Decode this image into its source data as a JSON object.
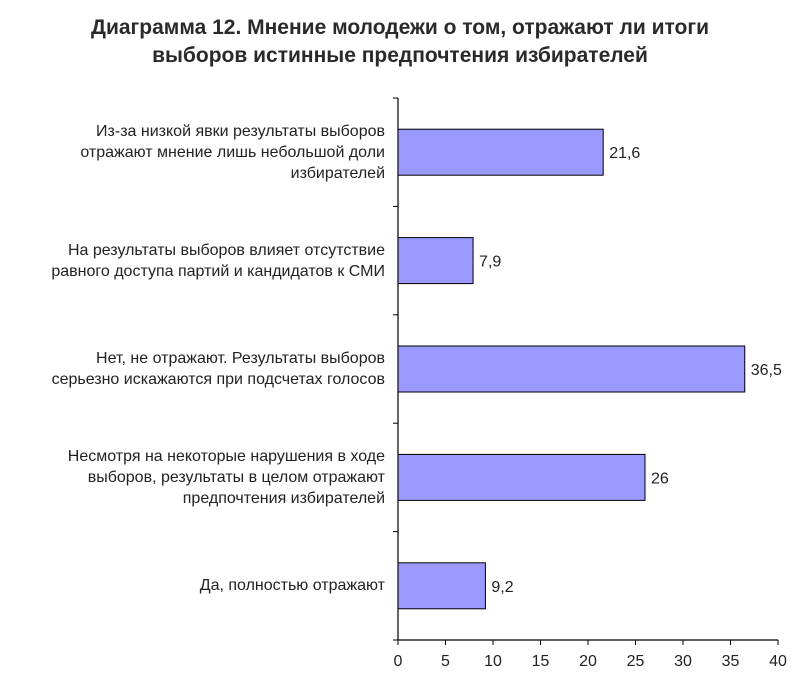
{
  "chart_data": {
    "type": "bar",
    "orientation": "horizontal",
    "title_lines": [
      "Диаграмма 12. Мнение молодежи о том, отражают ли итоги",
      "выборов истинные предпочтения избирателей"
    ],
    "categories": [
      [
        "Из-за низкой явки результаты выборов",
        "отражают мнение лишь небольшой доли",
        "избирателей"
      ],
      [
        "На результаты выборов влияет отсутствие",
        "равного доступа партий и кандидатов к СМИ"
      ],
      [
        "Нет, не отражают. Результаты выборов",
        "серьезно искажаются при подсчетах голосов"
      ],
      [
        "Несмотря на некоторые нарушения в ходе",
        "выборов, результаты в целом отражают",
        "предпочтения избирателей"
      ],
      [
        "Да, полностью отражают"
      ]
    ],
    "values": [
      21.6,
      7.9,
      36.5,
      26,
      9.2
    ],
    "value_labels": [
      "21,6",
      "7,9",
      "36,5",
      "26",
      "9,2"
    ],
    "xlim": [
      0,
      40
    ],
    "xticks": [
      0,
      5,
      10,
      15,
      20,
      25,
      30,
      35,
      40
    ],
    "grid": false,
    "legend": "none",
    "colors": {
      "bar_fill": "#9999ff",
      "bar_stroke": "#000000",
      "axis": "#000000"
    }
  }
}
